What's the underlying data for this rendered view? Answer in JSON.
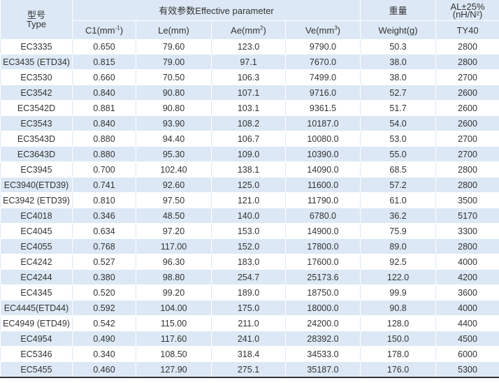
{
  "header": {
    "type_cn": "型号",
    "type_en": "Type",
    "effective_group": "有效参数Effective  parameter",
    "weight_cn": "重量",
    "al_line1": "AL±25%",
    "al_line2": "(nH/N²)",
    "c1_base": "C1(mm",
    "c1_sup": "-1",
    "c1_close": ")",
    "le": "Le(mm)",
    "ae_base": "Ae(mm",
    "ae_sup": "2",
    "ae_close": ")",
    "ve_base": "Ve(mm",
    "ve_sup": "3",
    "ve_close": ")",
    "weight_en": "Weight(g)",
    "ty40": "TY40"
  },
  "rows": [
    {
      "type": "EC3335",
      "c1": "0.650",
      "le": "79.60",
      "ae": "123.0",
      "ve": "9790.0",
      "weight": "50.3",
      "al": "2800"
    },
    {
      "type": "EC3435  (ETD34)",
      "c1": "0.815",
      "le": "79.00",
      "ae": "97.1",
      "ve": "7670.0",
      "weight": "38.0",
      "al": "2800"
    },
    {
      "type": "EC3530",
      "c1": "0.660",
      "le": "70.50",
      "ae": "106.3",
      "ve": "7499.0",
      "weight": "38.0",
      "al": "2700"
    },
    {
      "type": "EC3542",
      "c1": "0.840",
      "le": "90.80",
      "ae": "107.1",
      "ve": "9716.0",
      "weight": "52.7",
      "al": "2600"
    },
    {
      "type": "EC3542D",
      "c1": "0.881",
      "le": "90.80",
      "ae": "103.1",
      "ve": "9361.5",
      "weight": "51.7",
      "al": "2600"
    },
    {
      "type": "EC3543",
      "c1": "0.840",
      "le": "93.90",
      "ae": "108.2",
      "ve": "10187.0",
      "weight": "54.0",
      "al": "2600"
    },
    {
      "type": "EC3543D",
      "c1": "0.880",
      "le": "94.40",
      "ae": "106.7",
      "ve": "10080.0",
      "weight": "53.0",
      "al": "2700"
    },
    {
      "type": "EC3643D",
      "c1": "0.880",
      "le": "95.30",
      "ae": "109.0",
      "ve": "10390.0",
      "weight": "55.0",
      "al": "2700"
    },
    {
      "type": "EC3945",
      "c1": "0.700",
      "le": "102.40",
      "ae": "138.1",
      "ve": "14090.0",
      "weight": "68.5",
      "al": "2800"
    },
    {
      "type": "EC3940(ETD39)",
      "c1": "0.741",
      "le": "92.60",
      "ae": "125.0",
      "ve": "11600.0",
      "weight": "57.2",
      "al": "2800"
    },
    {
      "type": "EC3942 (ETD39)",
      "c1": "0.810",
      "le": "97.50",
      "ae": "121.0",
      "ve": "11790.0",
      "weight": "61.0",
      "al": "3500"
    },
    {
      "type": "EC4018",
      "c1": "0.346",
      "le": "48.50",
      "ae": "140.0",
      "ve": "6780.0",
      "weight": "36.2",
      "al": "5170"
    },
    {
      "type": "EC4045",
      "c1": "0.634",
      "le": "97.20",
      "ae": "153.0",
      "ve": "14900.0",
      "weight": "75.9",
      "al": "3300"
    },
    {
      "type": "EC4055",
      "c1": "0.768",
      "le": "117.00",
      "ae": "152.0",
      "ve": "17800.0",
      "weight": "89.0",
      "al": "2800"
    },
    {
      "type": "EC4242",
      "c1": "0.527",
      "le": "96.30",
      "ae": "183.0",
      "ve": "17600.0",
      "weight": "92.5",
      "al": "4000"
    },
    {
      "type": "EC4244",
      "c1": "0.380",
      "le": "98.80",
      "ae": "254.7",
      "ve": "25173.6",
      "weight": "122.0",
      "al": "4200"
    },
    {
      "type": "EC4345",
      "c1": "0.520",
      "le": "99.20",
      "ae": "189.0",
      "ve": "18750.0",
      "weight": "99.9",
      "al": "3600"
    },
    {
      "type": "EC4445(ETD44)",
      "c1": "0.592",
      "le": "104.00",
      "ae": "175.0",
      "ve": "18000.0",
      "weight": "90.8",
      "al": "4000"
    },
    {
      "type": "EC4949 (ETD49)",
      "c1": "0.542",
      "le": "115.00",
      "ae": "211.0",
      "ve": "24200.0",
      "weight": "128.0",
      "al": "4400"
    },
    {
      "type": "EC4954",
      "c1": "0.490",
      "le": "117.60",
      "ae": "241.0",
      "ve": "28392.0",
      "weight": "150.0",
      "al": "4500"
    },
    {
      "type": "EC5346",
      "c1": "0.340",
      "le": "108.50",
      "ae": "318.4",
      "ve": "34533.0",
      "weight": "178.0",
      "al": "6000"
    },
    {
      "type": "EC5455",
      "c1": "0.460",
      "le": "127.90",
      "ae": "275.1",
      "ve": "35187.0",
      "weight": "176.0",
      "al": "5300"
    }
  ]
}
